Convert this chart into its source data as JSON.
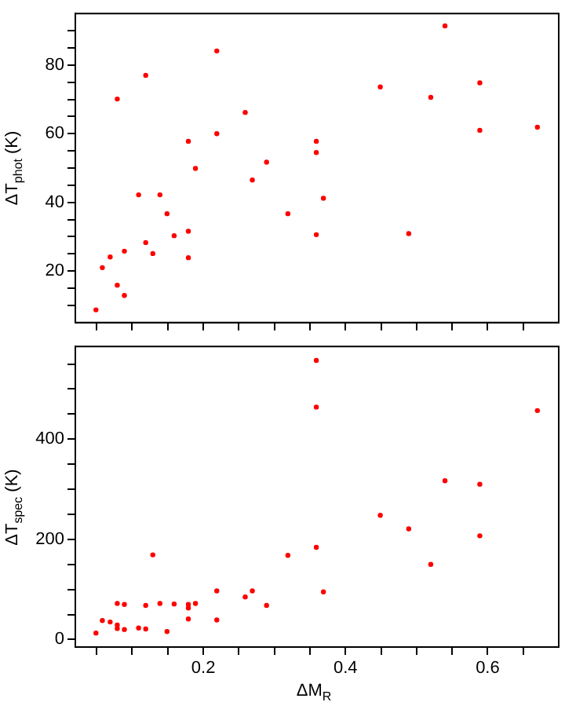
{
  "chart_data": [
    {
      "type": "scatter",
      "ylabel": "ΔT$_{phot}$ (K)",
      "color": "#ff0000",
      "marker": "circle",
      "grid": false,
      "legend": false,
      "tick_labels": "y",
      "xlim": [
        0.02,
        0.7
      ],
      "xticks": [
        {
          "value": 0.05,
          "label": null
        },
        {
          "value": 0.1,
          "label": null
        },
        {
          "value": 0.15,
          "label": null
        },
        {
          "value": 0.2,
          "label": null
        },
        {
          "value": 0.25,
          "label": null
        },
        {
          "value": 0.3,
          "label": null
        },
        {
          "value": 0.35,
          "label": null
        },
        {
          "value": 0.4,
          "label": null
        },
        {
          "value": 0.45,
          "label": null
        },
        {
          "value": 0.5,
          "label": null
        },
        {
          "value": 0.55,
          "label": null
        },
        {
          "value": 0.6,
          "label": null
        },
        {
          "value": 0.65,
          "label": null
        }
      ],
      "ylim": [
        5,
        95
      ],
      "yticks": [
        {
          "value": 10,
          "label": null
        },
        {
          "value": 15,
          "label": null
        },
        20,
        {
          "value": 25,
          "label": null
        },
        {
          "value": 30,
          "label": null
        },
        {
          "value": 35,
          "label": null
        },
        40,
        {
          "value": 45,
          "label": null
        },
        {
          "value": 50,
          "label": null
        },
        {
          "value": 55,
          "label": null
        },
        60,
        {
          "value": 65,
          "label": null
        },
        {
          "value": 70,
          "label": null
        },
        {
          "value": 75,
          "label": null
        },
        80,
        {
          "value": 85,
          "label": null
        },
        {
          "value": 90,
          "label": null
        }
      ],
      "x": [
        0.049,
        0.058,
        0.069,
        0.079,
        0.079,
        0.089,
        0.089,
        0.109,
        0.119,
        0.119,
        0.129,
        0.139,
        0.149,
        0.159,
        0.179,
        0.179,
        0.179,
        0.189,
        0.219,
        0.219,
        0.259,
        0.269,
        0.289,
        0.319,
        0.359,
        0.359,
        0.359,
        0.369,
        0.449,
        0.489,
        0.52,
        0.54,
        0.589,
        0.589,
        0.67
      ],
      "values": [
        8.7,
        21,
        24.1,
        70.1,
        15.9,
        12.9,
        25.8,
        42.2,
        77,
        28.3,
        25.1,
        42.2,
        36.7,
        30.3,
        57.8,
        31.6,
        23.9,
        49.9,
        84.1,
        60,
        66.2,
        46.5,
        51.7,
        36.7,
        57.8,
        54.5,
        30.6,
        41.2,
        73.6,
        30.9,
        70.6,
        91.4,
        74.8,
        61,
        61.9
      ]
    },
    {
      "type": "scatter",
      "xlabel": "ΔM$_{R}$",
      "ylabel": "ΔT$_{spec}$ (K)",
      "color": "#ff0000",
      "marker": "circle",
      "grid": false,
      "legend": false,
      "xlim": [
        0.02,
        0.7
      ],
      "xticks": [
        {
          "value": 0.05,
          "label": null
        },
        {
          "value": 0.1,
          "label": null
        },
        {
          "value": 0.15,
          "label": null
        },
        {
          "value": 0.2,
          "label": "0.2"
        },
        {
          "value": 0.25,
          "label": null
        },
        {
          "value": 0.3,
          "label": null
        },
        {
          "value": 0.35,
          "label": null
        },
        {
          "value": 0.4,
          "label": "0.4"
        },
        {
          "value": 0.45,
          "label": null
        },
        {
          "value": 0.5,
          "label": null
        },
        {
          "value": 0.55,
          "label": null
        },
        {
          "value": 0.6,
          "label": "0.6"
        },
        {
          "value": 0.65,
          "label": null
        }
      ],
      "ylim": [
        -15,
        585
      ],
      "yticks": [
        0,
        {
          "value": 50,
          "label": null
        },
        {
          "value": 100,
          "label": null
        },
        {
          "value": 150,
          "label": null
        },
        200,
        {
          "value": 250,
          "label": null
        },
        {
          "value": 300,
          "label": null
        },
        {
          "value": 350,
          "label": null
        },
        400,
        {
          "value": 450,
          "label": null
        },
        {
          "value": 500,
          "label": null
        },
        {
          "value": 550,
          "label": null
        }
      ],
      "x": [
        0.049,
        0.058,
        0.069,
        0.079,
        0.079,
        0.079,
        0.089,
        0.089,
        0.109,
        0.119,
        0.119,
        0.129,
        0.139,
        0.149,
        0.159,
        0.179,
        0.179,
        0.179,
        0.189,
        0.219,
        0.219,
        0.259,
        0.269,
        0.289,
        0.319,
        0.359,
        0.359,
        0.359,
        0.369,
        0.449,
        0.489,
        0.52,
        0.54,
        0.589,
        0.589,
        0.67
      ],
      "values": [
        13,
        38,
        35,
        72,
        29,
        22,
        70,
        20,
        23,
        68,
        21,
        169,
        72,
        16,
        71,
        70,
        63,
        41,
        72,
        97,
        39,
        85,
        97,
        68,
        168,
        557,
        464,
        184,
        95,
        248,
        221,
        150,
        317,
        310,
        207,
        457
      ]
    }
  ]
}
